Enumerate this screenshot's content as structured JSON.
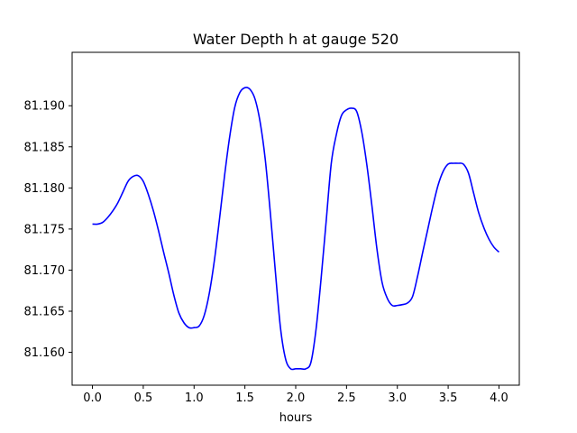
{
  "chart_data": {
    "type": "line",
    "title": "Water Depth h at gauge 520",
    "xlabel": "hours",
    "ylabel": "",
    "xlim": [
      -0.2,
      4.2
    ],
    "ylim": [
      81.156,
      81.1965
    ],
    "xticks": [
      0.0,
      0.5,
      1.0,
      1.5,
      2.0,
      2.5,
      3.0,
      3.5,
      4.0
    ],
    "xtick_labels": [
      "0.0",
      "0.5",
      "1.0",
      "1.5",
      "2.0",
      "2.5",
      "3.0",
      "3.5",
      "4.0"
    ],
    "yticks": [
      81.16,
      81.165,
      81.17,
      81.175,
      81.18,
      81.185,
      81.19
    ],
    "ytick_labels": [
      "81.160",
      "81.165",
      "81.170",
      "81.175",
      "81.180",
      "81.185",
      "81.190"
    ],
    "grid": false,
    "series": [
      {
        "color": "#0000ff",
        "x": [
          0.0,
          0.05,
          0.1,
          0.15,
          0.2,
          0.25,
          0.3,
          0.35,
          0.4,
          0.45,
          0.5,
          0.55,
          0.6,
          0.65,
          0.7,
          0.75,
          0.8,
          0.85,
          0.9,
          0.95,
          1.0,
          1.05,
          1.1,
          1.15,
          1.2,
          1.25,
          1.3,
          1.35,
          1.4,
          1.45,
          1.5,
          1.55,
          1.6,
          1.65,
          1.7,
          1.75,
          1.8,
          1.85,
          1.9,
          1.95,
          2.0,
          2.05,
          2.1,
          2.15,
          2.2,
          2.25,
          2.3,
          2.35,
          2.4,
          2.45,
          2.5,
          2.55,
          2.6,
          2.65,
          2.7,
          2.75,
          2.8,
          2.85,
          2.9,
          2.95,
          3.0,
          3.05,
          3.1,
          3.15,
          3.2,
          3.25,
          3.3,
          3.35,
          3.4,
          3.45,
          3.5,
          3.55,
          3.6,
          3.65,
          3.7,
          3.75,
          3.8,
          3.85,
          3.9,
          3.95,
          4.0
        ],
        "y": [
          81.1756,
          81.1756,
          81.1758,
          81.1764,
          81.1772,
          81.1782,
          81.1795,
          81.1808,
          81.1814,
          81.1815,
          81.1808,
          81.1792,
          81.1772,
          81.1748,
          81.1722,
          81.1697,
          81.167,
          81.1648,
          81.1636,
          81.163,
          81.163,
          81.1632,
          81.1645,
          81.1672,
          81.1712,
          81.1762,
          81.1815,
          81.1862,
          81.1898,
          81.1916,
          81.1922,
          81.192,
          81.1908,
          81.188,
          81.1835,
          81.177,
          81.1698,
          81.163,
          81.1592,
          81.158,
          81.158,
          81.158,
          81.158,
          81.1588,
          81.1628,
          81.169,
          81.176,
          81.183,
          81.1865,
          81.1888,
          81.1895,
          81.1897,
          81.1893,
          81.1868,
          81.1828,
          81.1778,
          81.1725,
          81.1685,
          81.1666,
          81.1657,
          81.1657,
          81.1658,
          81.166,
          81.1668,
          81.1693,
          81.1722,
          81.175,
          81.1778,
          81.1803,
          81.182,
          81.1829,
          81.183,
          81.183,
          81.1829,
          81.1818,
          81.1794,
          81.177,
          81.1752,
          81.1738,
          81.1728,
          81.1722
        ]
      }
    ]
  }
}
